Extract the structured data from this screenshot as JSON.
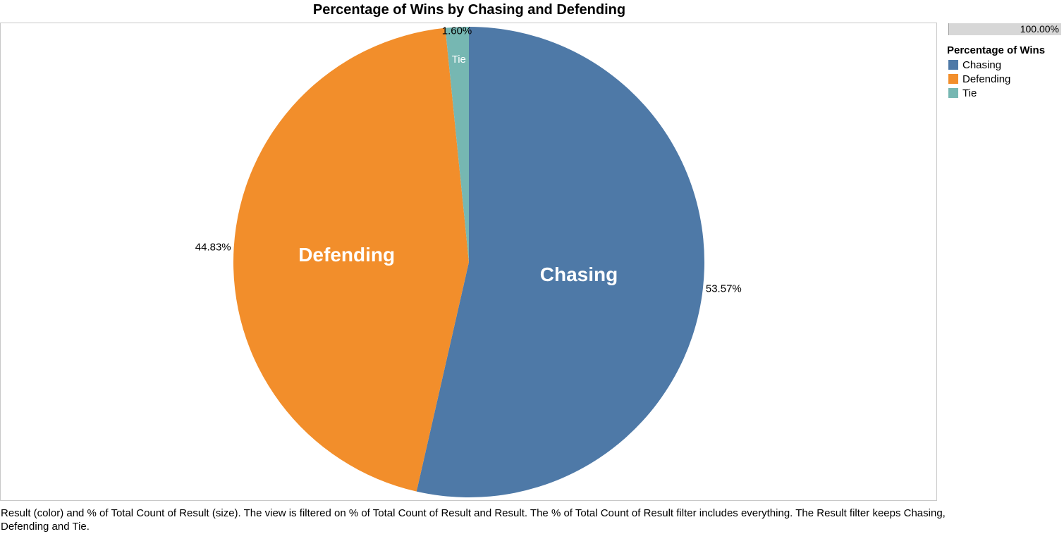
{
  "chart_data": {
    "type": "pie",
    "title": "Percentage of Wins by Chasing and Defending",
    "slices": [
      {
        "name": "Chasing",
        "value": 53.57,
        "label": "53.57%",
        "color": "#4e79a7"
      },
      {
        "name": "Defending",
        "value": 44.83,
        "label": "44.83%",
        "color": "#f28e2b"
      },
      {
        "name": "Tie",
        "value": 1.6,
        "label": "1.60%",
        "color": "#76b7b2"
      }
    ],
    "legend": {
      "title": "Percentage of Wins",
      "placement": "right",
      "items": [
        "Chasing",
        "Defending",
        "Tie"
      ]
    },
    "size_legend": {
      "label": "100.00%"
    }
  },
  "caption": "Result (color) and % of Total Count of Result (size). The view is filtered on % of Total Count of Result and Result. The % of Total Count of Result filter includes everything. The Result filter keeps Chasing, Defending and Tie."
}
